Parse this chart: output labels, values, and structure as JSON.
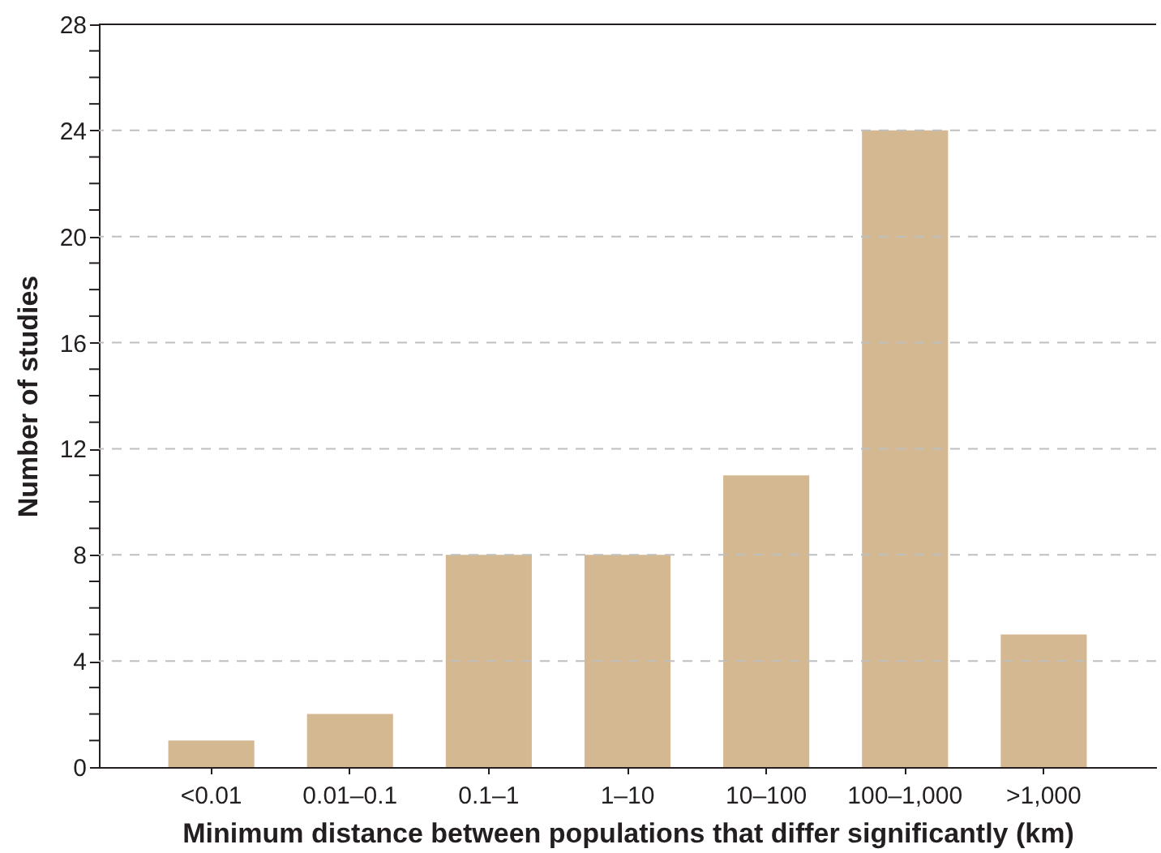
{
  "chart_data": {
    "type": "bar",
    "xlabel": "Minimum distance between populations that differ significantly (km)",
    "ylabel": "Number of studies",
    "categories": [
      "<0.01",
      "0.01–0.1",
      "0.1–1",
      "1–10",
      "10–100",
      "100–1,000",
      ">1,000"
    ],
    "values": [
      1,
      2,
      8,
      8,
      11,
      24,
      5
    ],
    "color": "#d4b891",
    "ylim": [
      0,
      28
    ],
    "yticks": [
      0,
      {
        "value": 1,
        "label": null
      },
      {
        "value": 2,
        "label": null
      },
      {
        "value": 3,
        "label": null
      },
      4,
      {
        "value": 5,
        "label": null
      },
      {
        "value": 6,
        "label": null
      },
      {
        "value": 7,
        "label": null
      },
      8,
      {
        "value": 9,
        "label": null
      },
      {
        "value": 10,
        "label": null
      },
      {
        "value": 11,
        "label": null
      },
      12,
      {
        "value": 13,
        "label": null
      },
      {
        "value": 14,
        "label": null
      },
      {
        "value": 15,
        "label": null
      },
      16,
      {
        "value": 17,
        "label": null
      },
      {
        "value": 18,
        "label": null
      },
      {
        "value": 19,
        "label": null
      },
      20,
      {
        "value": 21,
        "label": null
      },
      {
        "value": 22,
        "label": null
      },
      {
        "value": 23,
        "label": null
      },
      24,
      {
        "value": 25,
        "label": null
      },
      {
        "value": 26,
        "label": null
      },
      {
        "value": 27,
        "label": null
      },
      28
    ],
    "grid": "y"
  }
}
